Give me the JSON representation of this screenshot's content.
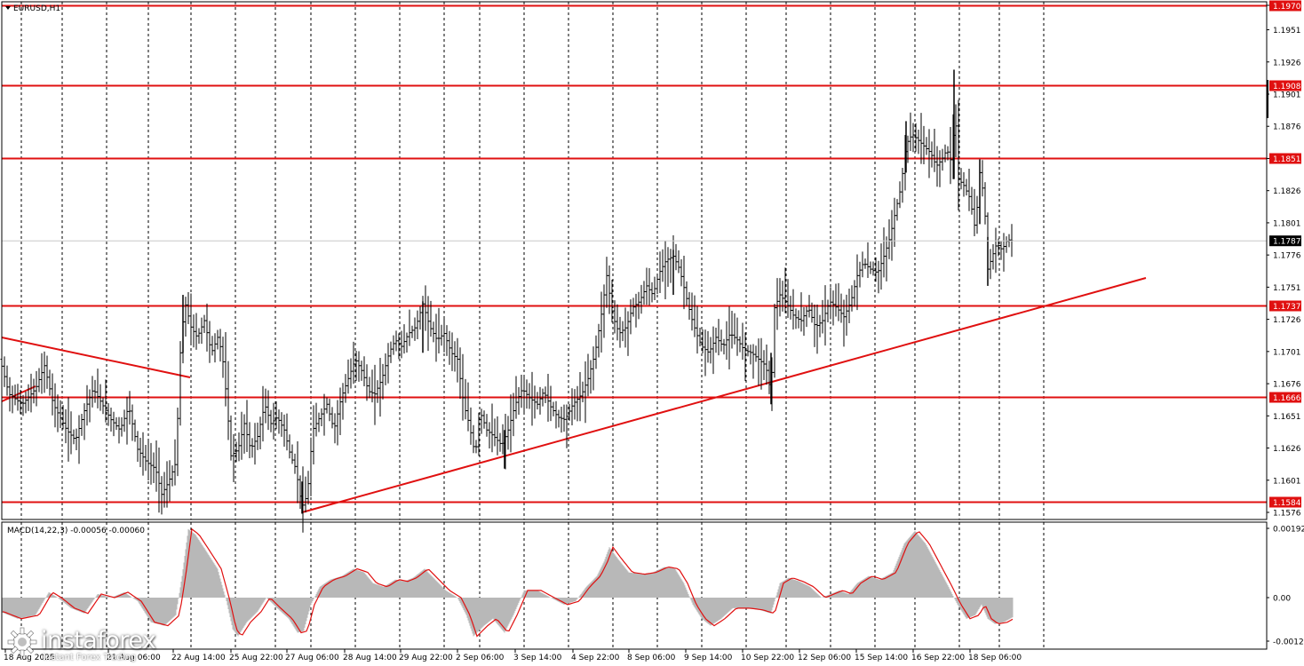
{
  "symbol_label": "EURUSD,H1",
  "macd_label": "MACD(14,22,3) -0.00056 -0.00060",
  "colors": {
    "background": "#ffffff",
    "bar": "#000000",
    "level": "#e01010",
    "trend": "#e01010",
    "macd_hist": "#b8b8b8",
    "macd_signal": "#e01010",
    "grid": "#000000",
    "price_box": "#000000"
  },
  "logo": {
    "name": "instaforex",
    "tagline": "Instant Forex Trading",
    "icon": "gear-icon"
  },
  "chart_data": [
    {
      "type": "ohlc",
      "title": "EURUSD,H1",
      "y_ticks": [
        "1.1970",
        "1.1951",
        "1.1926",
        "1.1901",
        "1.1876",
        "1.1851",
        "1.1826",
        "1.1801",
        "1.1776",
        "1.1751",
        "1.1726",
        "1.1701",
        "1.1676",
        "1.1651",
        "1.1626",
        "1.1601",
        "1.1576"
      ],
      "ylim": [
        1.157,
        1.1972
      ],
      "x_ticks": [
        "18 Aug 2025",
        "21 Aug 06:00",
        "22 Aug 14:00",
        "25 Aug 22:00",
        "27 Aug 06:00",
        "28 Aug 14:00",
        "29 Aug 22:00",
        "2 Sep 06:00",
        "3 Sep 14:00",
        "4 Sep 22:00",
        "8 Sep 06:00",
        "9 Sep 14:00",
        "10 Sep 22:00",
        "12 Sep 06:00",
        "15 Sep 14:00",
        "16 Sep 22:00",
        "18 Sep 06:00"
      ],
      "x_tick_visible": [
        "18 Aug 2025",
        "21 Aug 06:00",
        "22 Aug 14:00",
        "25 Aug 22:00",
        "27 Aug 06:00",
        "28 Aug 14:00",
        "29 Aug 22:00",
        "2 Sep 06:00",
        "3 Sep 14:00",
        "4 Sep 22:00",
        "8 Sep 06:00",
        "9 Sep 14:00",
        "10 Sep 22:00",
        "12 Sep 06:00",
        "15 Sep 14:00",
        "16 Sep 22:00",
        "18 Sep 06:00"
      ],
      "last_price": "1.1787",
      "levels": [
        "1.1970",
        "1.1908",
        "1.1851",
        "1.1737",
        "1.1666",
        "1.1584"
      ],
      "price_path": [
        [
          0,
          1.1695
        ],
        [
          10,
          1.1668
        ],
        [
          25,
          1.166
        ],
        [
          40,
          1.1672
        ],
        [
          50,
          1.169
        ],
        [
          60,
          1.166
        ],
        [
          75,
          1.164
        ],
        [
          85,
          1.1632
        ],
        [
          95,
          1.1655
        ],
        [
          105,
          1.1672
        ],
        [
          115,
          1.166
        ],
        [
          125,
          1.1648
        ],
        [
          135,
          1.164
        ],
        [
          145,
          1.1658
        ],
        [
          155,
          1.1625
        ],
        [
          165,
          1.1615
        ],
        [
          175,
          1.161
        ],
        [
          182,
          1.159
        ],
        [
          190,
          1.16
        ],
        [
          198,
          1.1615
        ],
        [
          203,
          1.17
        ],
        [
          208,
          1.174
        ],
        [
          215,
          1.172
        ],
        [
          222,
          1.1712
        ],
        [
          230,
          1.1725
        ],
        [
          238,
          1.17
        ],
        [
          245,
          1.1712
        ],
        [
          250,
          1.17
        ],
        [
          255,
          1.1665
        ],
        [
          260,
          1.162
        ],
        [
          268,
          1.1625
        ],
        [
          275,
          1.1645
        ],
        [
          282,
          1.1625
        ],
        [
          290,
          1.1635
        ],
        [
          298,
          1.166
        ],
        [
          305,
          1.1645
        ],
        [
          312,
          1.165
        ],
        [
          320,
          1.164
        ],
        [
          327,
          1.162
        ],
        [
          333,
          1.161
        ],
        [
          340,
          1.158
        ],
        [
          346,
          1.159
        ],
        [
          352,
          1.164
        ],
        [
          360,
          1.165
        ],
        [
          368,
          1.166
        ],
        [
          376,
          1.164
        ],
        [
          384,
          1.1665
        ],
        [
          392,
          1.168
        ],
        [
          400,
          1.1695
        ],
        [
          408,
          1.1685
        ],
        [
          415,
          1.167
        ],
        [
          422,
          1.1668
        ],
        [
          430,
          1.168
        ],
        [
          438,
          1.17
        ],
        [
          445,
          1.171
        ],
        [
          452,
          1.1705
        ],
        [
          460,
          1.1715
        ],
        [
          468,
          1.172
        ],
        [
          476,
          1.1738
        ],
        [
          484,
          1.172
        ],
        [
          492,
          1.171
        ],
        [
          500,
          1.1715
        ],
        [
          508,
          1.17
        ],
        [
          515,
          1.1695
        ],
        [
          522,
          1.166
        ],
        [
          528,
          1.1645
        ],
        [
          535,
          1.162
        ],
        [
          540,
          1.1655
        ],
        [
          548,
          1.164
        ],
        [
          556,
          1.1635
        ],
        [
          565,
          1.1628
        ],
        [
          572,
          1.164
        ],
        [
          580,
          1.166
        ],
        [
          588,
          1.1672
        ],
        [
          596,
          1.1665
        ],
        [
          605,
          1.166
        ],
        [
          612,
          1.167
        ],
        [
          620,
          1.1658
        ],
        [
          628,
          1.165
        ],
        [
          636,
          1.1648
        ],
        [
          645,
          1.166
        ],
        [
          655,
          1.1668
        ],
        [
          662,
          1.168
        ],
        [
          670,
          1.17
        ],
        [
          677,
          1.173
        ],
        [
          683,
          1.176
        ],
        [
          690,
          1.1728
        ],
        [
          697,
          1.1715
        ],
        [
          705,
          1.172
        ],
        [
          712,
          1.1735
        ],
        [
          720,
          1.174
        ],
        [
          728,
          1.1752
        ],
        [
          735,
          1.1745
        ],
        [
          742,
          1.1762
        ],
        [
          750,
          1.1772
        ],
        [
          758,
          1.1775
        ],
        [
          765,
          1.1765
        ],
        [
          772,
          1.1745
        ],
        [
          778,
          1.1728
        ],
        [
          784,
          1.1715
        ],
        [
          790,
          1.1705
        ],
        [
          798,
          1.17
        ],
        [
          806,
          1.1712
        ],
        [
          814,
          1.1705
        ],
        [
          822,
          1.1715
        ],
        [
          830,
          1.171
        ],
        [
          838,
          1.1702
        ],
        [
          846,
          1.17
        ],
        [
          854,
          1.1695
        ],
        [
          862,
          1.169
        ],
        [
          868,
          1.1668
        ],
        [
          872,
          1.1735
        ],
        [
          878,
          1.1745
        ],
        [
          886,
          1.1738
        ],
        [
          894,
          1.1728
        ],
        [
          902,
          1.1725
        ],
        [
          910,
          1.1735
        ],
        [
          918,
          1.172
        ],
        [
          926,
          1.1725
        ],
        [
          934,
          1.174
        ],
        [
          942,
          1.1735
        ],
        [
          950,
          1.1728
        ],
        [
          958,
          1.174
        ],
        [
          965,
          1.176
        ],
        [
          972,
          1.177
        ],
        [
          980,
          1.1765
        ],
        [
          988,
          1.1762
        ],
        [
          995,
          1.1775
        ],
        [
          1002,
          1.179
        ],
        [
          1008,
          1.181
        ],
        [
          1014,
          1.1828
        ],
        [
          1020,
          1.1862
        ],
        [
          1027,
          1.187
        ],
        [
          1034,
          1.1865
        ],
        [
          1041,
          1.186
        ],
        [
          1048,
          1.1855
        ],
        [
          1054,
          1.1845
        ],
        [
          1060,
          1.185
        ],
        [
          1066,
          1.1858
        ],
        [
          1071,
          1.1848
        ],
        [
          1075,
          1.189
        ],
        [
          1079,
          1.1835
        ],
        [
          1085,
          1.183
        ],
        [
          1092,
          1.182
        ],
        [
          1098,
          1.1795
        ],
        [
          1103,
          1.184
        ],
        [
          1108,
          1.182
        ],
        [
          1112,
          1.1765
        ],
        [
          1117,
          1.1775
        ],
        [
          1122,
          1.1785
        ],
        [
          1128,
          1.178
        ],
        [
          1134,
          1.1788
        ],
        [
          1140,
          1.1787
        ]
      ],
      "spikes": [
        [
          1074,
          1.192,
          1.1835
        ],
        [
          1020,
          1.188,
          1.184
        ],
        [
          868,
          1.17,
          1.166
        ],
        [
          206,
          1.1745,
          1.17
        ],
        [
          476,
          1.174,
          1.17
        ],
        [
          1103,
          1.185,
          1.18
        ],
        [
          1112,
          1.179,
          1.1752
        ],
        [
          340,
          1.16,
          1.1575
        ],
        [
          568,
          1.164,
          1.161
        ],
        [
          758,
          1.178,
          1.1745
        ]
      ]
    },
    {
      "type": "macd",
      "title": "MACD(14,22,3) -0.00056 -0.00060",
      "y_ticks": [
        "0.00192",
        "0.00",
        "-0.00124"
      ],
      "ylim": [
        -0.0014,
        0.0021
      ],
      "macd_path": [
        [
          0,
          -0.0004
        ],
        [
          20,
          -0.0006
        ],
        [
          40,
          -0.0005
        ],
        [
          55,
          0.00015
        ],
        [
          65,
          0.0
        ],
        [
          80,
          -0.0003
        ],
        [
          95,
          -0.00045
        ],
        [
          110,
          0.0001
        ],
        [
          125,
          0.0
        ],
        [
          140,
          0.00015
        ],
        [
          155,
          -0.0001
        ],
        [
          170,
          -0.0007
        ],
        [
          185,
          -0.0008
        ],
        [
          198,
          -0.0005
        ],
        [
          205,
          0.0006
        ],
        [
          212,
          0.0019
        ],
        [
          220,
          0.00175
        ],
        [
          232,
          0.0013
        ],
        [
          245,
          0.0008
        ],
        [
          255,
          -0.0001
        ],
        [
          262,
          -0.0009
        ],
        [
          268,
          -0.0011
        ],
        [
          278,
          -0.0007
        ],
        [
          290,
          -0.0004
        ],
        [
          300,
          0.0
        ],
        [
          312,
          -0.0003
        ],
        [
          325,
          -0.0006
        ],
        [
          335,
          -0.001
        ],
        [
          342,
          -0.00095
        ],
        [
          350,
          -0.0002
        ],
        [
          360,
          0.0003
        ],
        [
          372,
          0.0005
        ],
        [
          385,
          0.0006
        ],
        [
          398,
          0.0008
        ],
        [
          410,
          0.0007
        ],
        [
          420,
          0.0004
        ],
        [
          432,
          0.0003
        ],
        [
          445,
          0.0005
        ],
        [
          455,
          0.00045
        ],
        [
          465,
          0.00055
        ],
        [
          478,
          0.0008
        ],
        [
          490,
          0.0005
        ],
        [
          502,
          0.0002
        ],
        [
          515,
          0.0
        ],
        [
          525,
          -0.0005
        ],
        [
          533,
          -0.0011
        ],
        [
          545,
          -0.0008
        ],
        [
          555,
          -0.0006
        ],
        [
          568,
          -0.001
        ],
        [
          578,
          -0.0005
        ],
        [
          590,
          0.0002
        ],
        [
          605,
          0.0002
        ],
        [
          620,
          0.0
        ],
        [
          635,
          -0.0002
        ],
        [
          648,
          -0.0001
        ],
        [
          660,
          0.0003
        ],
        [
          672,
          0.0006
        ],
        [
          680,
          0.001
        ],
        [
          686,
          0.0014
        ],
        [
          695,
          0.0011
        ],
        [
          708,
          0.0007
        ],
        [
          722,
          0.00065
        ],
        [
          735,
          0.0007
        ],
        [
          748,
          0.00085
        ],
        [
          760,
          0.0008
        ],
        [
          770,
          0.0004
        ],
        [
          780,
          -0.0002
        ],
        [
          790,
          -0.0006
        ],
        [
          800,
          -0.0008
        ],
        [
          812,
          -0.0006
        ],
        [
          825,
          -0.0003
        ],
        [
          840,
          -0.0003
        ],
        [
          855,
          -0.00035
        ],
        [
          868,
          -0.00045
        ],
        [
          878,
          0.0004
        ],
        [
          888,
          0.00055
        ],
        [
          900,
          0.00045
        ],
        [
          912,
          0.0003
        ],
        [
          925,
          0.0
        ],
        [
          935,
          0.0001
        ],
        [
          945,
          0.0002
        ],
        [
          955,
          0.0001
        ],
        [
          965,
          0.0004
        ],
        [
          978,
          0.0006
        ],
        [
          990,
          0.0005
        ],
        [
          1005,
          0.0007
        ],
        [
          1018,
          0.0015
        ],
        [
          1030,
          0.00185
        ],
        [
          1042,
          0.0015
        ],
        [
          1055,
          0.0009
        ],
        [
          1068,
          0.0003
        ],
        [
          1078,
          -0.0002
        ],
        [
          1088,
          -0.0006
        ],
        [
          1098,
          -0.0005
        ],
        [
          1105,
          -0.0002
        ],
        [
          1112,
          -0.0006
        ],
        [
          1120,
          -0.00075
        ],
        [
          1130,
          -0.0007
        ],
        [
          1140,
          -0.00056
        ]
      ]
    }
  ]
}
